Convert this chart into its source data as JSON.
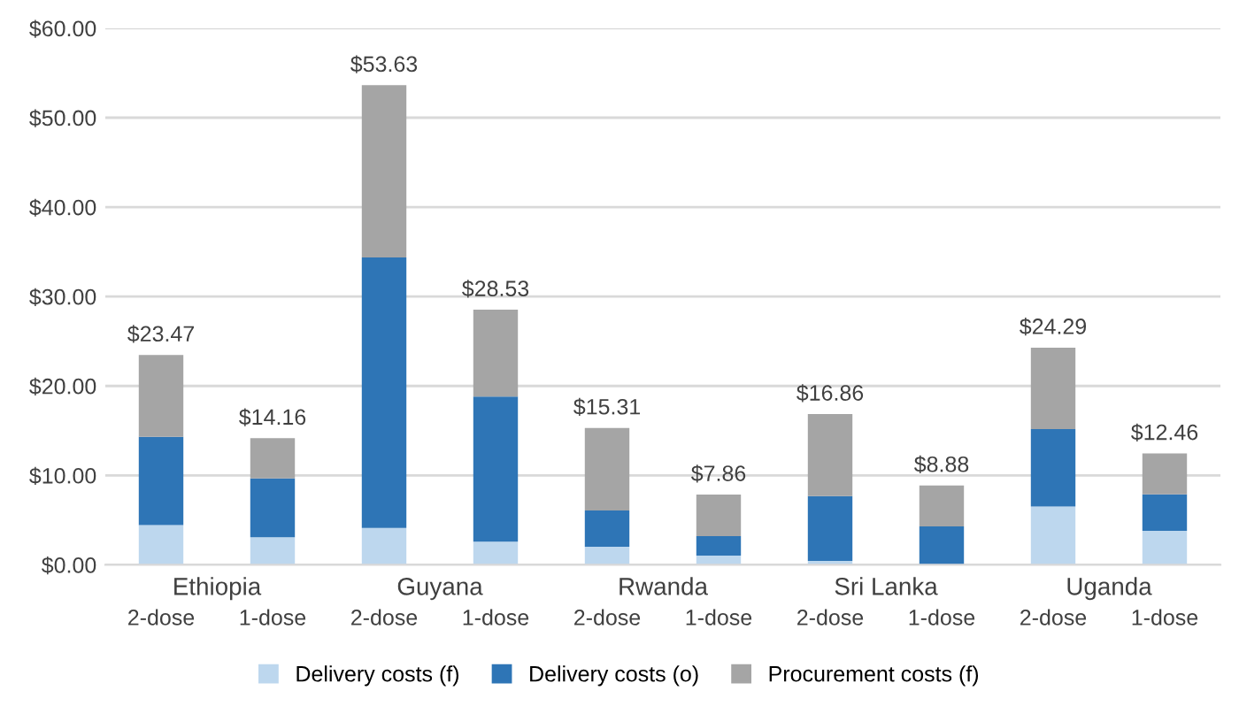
{
  "chart_data": {
    "type": "bar",
    "stacked": true,
    "categories": [
      "2-dose",
      "1-dose",
      "2-dose",
      "1-dose",
      "2-dose",
      "1-dose",
      "2-dose",
      "1-dose",
      "2-dose",
      "1-dose"
    ],
    "annotations": [
      "Ethiopia",
      "Guyana",
      "Rwanda",
      "Sri Lanka",
      "Uganda"
    ],
    "series": [
      {
        "name": "Delivery costs (f)",
        "color": "#bdd7ee",
        "values": [
          4.43,
          3.07,
          4.12,
          2.58,
          2.03,
          1.04,
          0.43,
          null,
          6.52,
          3.81
        ]
      },
      {
        "name": "Delivery costs (o)",
        "color": "#2e75b6",
        "values": [
          9.89,
          6.58,
          30.24,
          16.23,
          4.05,
          2.16,
          7.25,
          4.3,
          8.66,
          4.06
        ]
      },
      {
        "name": "Procurement costs (f)",
        "color": "#a5a5a5",
        "values": [
          9.15,
          4.51,
          19.27,
          9.72,
          9.23,
          4.66,
          9.18,
          4.58,
          9.11,
          4.59
        ]
      }
    ],
    "totals": [
      "$23.47",
      "$14.16",
      "$53.63",
      "$28.53",
      "$15.31",
      "$7.86",
      "$16.86",
      "$8.88",
      "$24.29",
      "$12.46"
    ],
    "ylim": [
      0,
      60
    ],
    "yticks": [
      {
        "value": 0,
        "label": "$0.00"
      },
      {
        "value": 10,
        "label": "$10.00"
      },
      {
        "value": 20,
        "label": "$20.00"
      },
      {
        "value": 30,
        "label": "$30.00"
      },
      {
        "value": 40,
        "label": "$40.00"
      },
      {
        "value": 50,
        "label": "$50.00"
      },
      {
        "value": 60,
        "label": "$60.00"
      }
    ],
    "grid": "y",
    "legend": "bottom"
  }
}
